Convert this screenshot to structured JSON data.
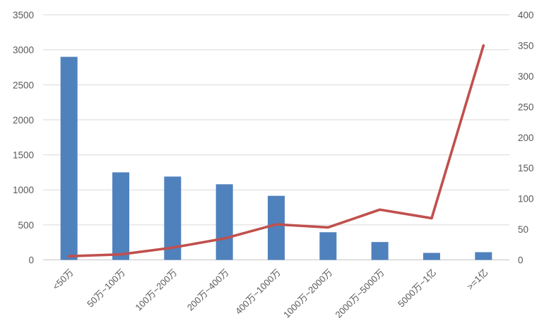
{
  "chart_data": {
    "type": "bar",
    "subtype": "combo-bar-line-dual-axis",
    "title": "",
    "xlabel": "",
    "ylabel": "",
    "grid": true,
    "legend": false,
    "categories": [
      "<50万",
      "50万~100万",
      "100万~200万",
      "200万~400万",
      "400万~1000万",
      "1000万~2000万",
      "2000万~5000万",
      "5000万~1亿",
      ">=1亿"
    ],
    "series": [
      {
        "name": "bar-series",
        "type": "bar",
        "axis": "left",
        "color": "#4F81BD",
        "values": [
          2900,
          1250,
          1190,
          1080,
          915,
          395,
          255,
          100,
          110
        ]
      },
      {
        "name": "line-series",
        "type": "line",
        "axis": "right",
        "color": "#C0504D",
        "values": [
          6,
          9,
          20,
          35,
          58,
          53,
          82,
          68,
          350
        ]
      }
    ],
    "left_axis": {
      "min": 0,
      "max": 3500,
      "step": 500,
      "tick_labels": [
        "0",
        "500",
        "1000",
        "1500",
        "2000",
        "2500",
        "3000",
        "3500"
      ]
    },
    "right_axis": {
      "min": 0,
      "max": 400,
      "step": 50,
      "tick_labels": [
        "0",
        "50",
        "100",
        "150",
        "200",
        "250",
        "300",
        "350",
        "400"
      ]
    }
  },
  "colors": {
    "bar": "#4F81BD",
    "line": "#C0504D",
    "gridline": "#D9D9D9",
    "axis_line": "#C6C6C6",
    "tick_text": "#595959",
    "background": "#FFFFFF"
  }
}
